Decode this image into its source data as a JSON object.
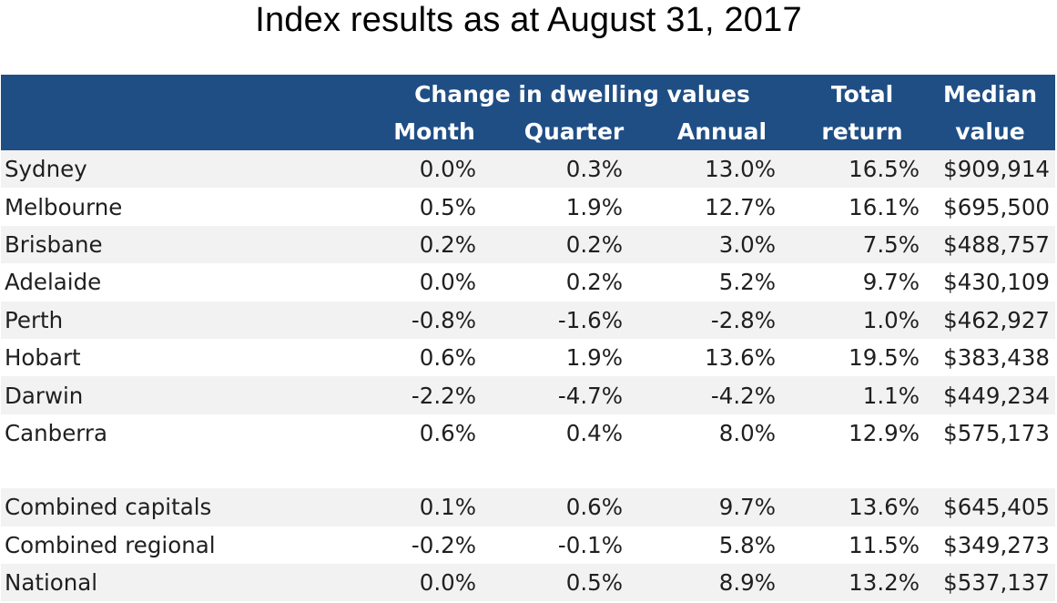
{
  "title": "Index results as at August 31, 2017",
  "table": {
    "header": {
      "group_label": "Change in dwelling values",
      "total_line1": "Total",
      "total_line2": "return",
      "median_line1": "Median",
      "median_line2": "value",
      "month": "Month",
      "quarter": "Quarter",
      "annual": "Annual"
    },
    "rows": [
      {
        "region": "Sydney",
        "month": "0.0%",
        "quarter": "0.3%",
        "annual": "13.0%",
        "total": "16.5%",
        "median": "$909,914"
      },
      {
        "region": "Melbourne",
        "month": "0.5%",
        "quarter": "1.9%",
        "annual": "12.7%",
        "total": "16.1%",
        "median": "$695,500"
      },
      {
        "region": "Brisbane",
        "month": "0.2%",
        "quarter": "0.2%",
        "annual": "3.0%",
        "total": "7.5%",
        "median": "$488,757"
      },
      {
        "region": "Adelaide",
        "month": "0.0%",
        "quarter": "0.2%",
        "annual": "5.2%",
        "total": "9.7%",
        "median": "$430,109"
      },
      {
        "region": "Perth",
        "month": "-0.8%",
        "quarter": "-1.6%",
        "annual": "-2.8%",
        "total": "1.0%",
        "median": "$462,927"
      },
      {
        "region": "Hobart",
        "month": "0.6%",
        "quarter": "1.9%",
        "annual": "13.6%",
        "total": "19.5%",
        "median": "$383,438"
      },
      {
        "region": "Darwin",
        "month": "-2.2%",
        "quarter": "-4.7%",
        "annual": "-4.2%",
        "total": "1.1%",
        "median": "$449,234"
      },
      {
        "region": "Canberra",
        "month": "0.6%",
        "quarter": "0.4%",
        "annual": "8.0%",
        "total": "12.9%",
        "median": "$575,173"
      }
    ],
    "summary_rows": [
      {
        "region": "Combined capitals",
        "month": "0.1%",
        "quarter": "0.6%",
        "annual": "9.7%",
        "total": "13.6%",
        "median": "$645,405"
      },
      {
        "region": "Combined regional",
        "month": "-0.2%",
        "quarter": "-0.1%",
        "annual": "5.8%",
        "total": "11.5%",
        "median": "$349,273"
      },
      {
        "region": "National",
        "month": "0.0%",
        "quarter": "0.5%",
        "annual": "8.9%",
        "total": "13.2%",
        "median": "$537,137"
      }
    ]
  }
}
